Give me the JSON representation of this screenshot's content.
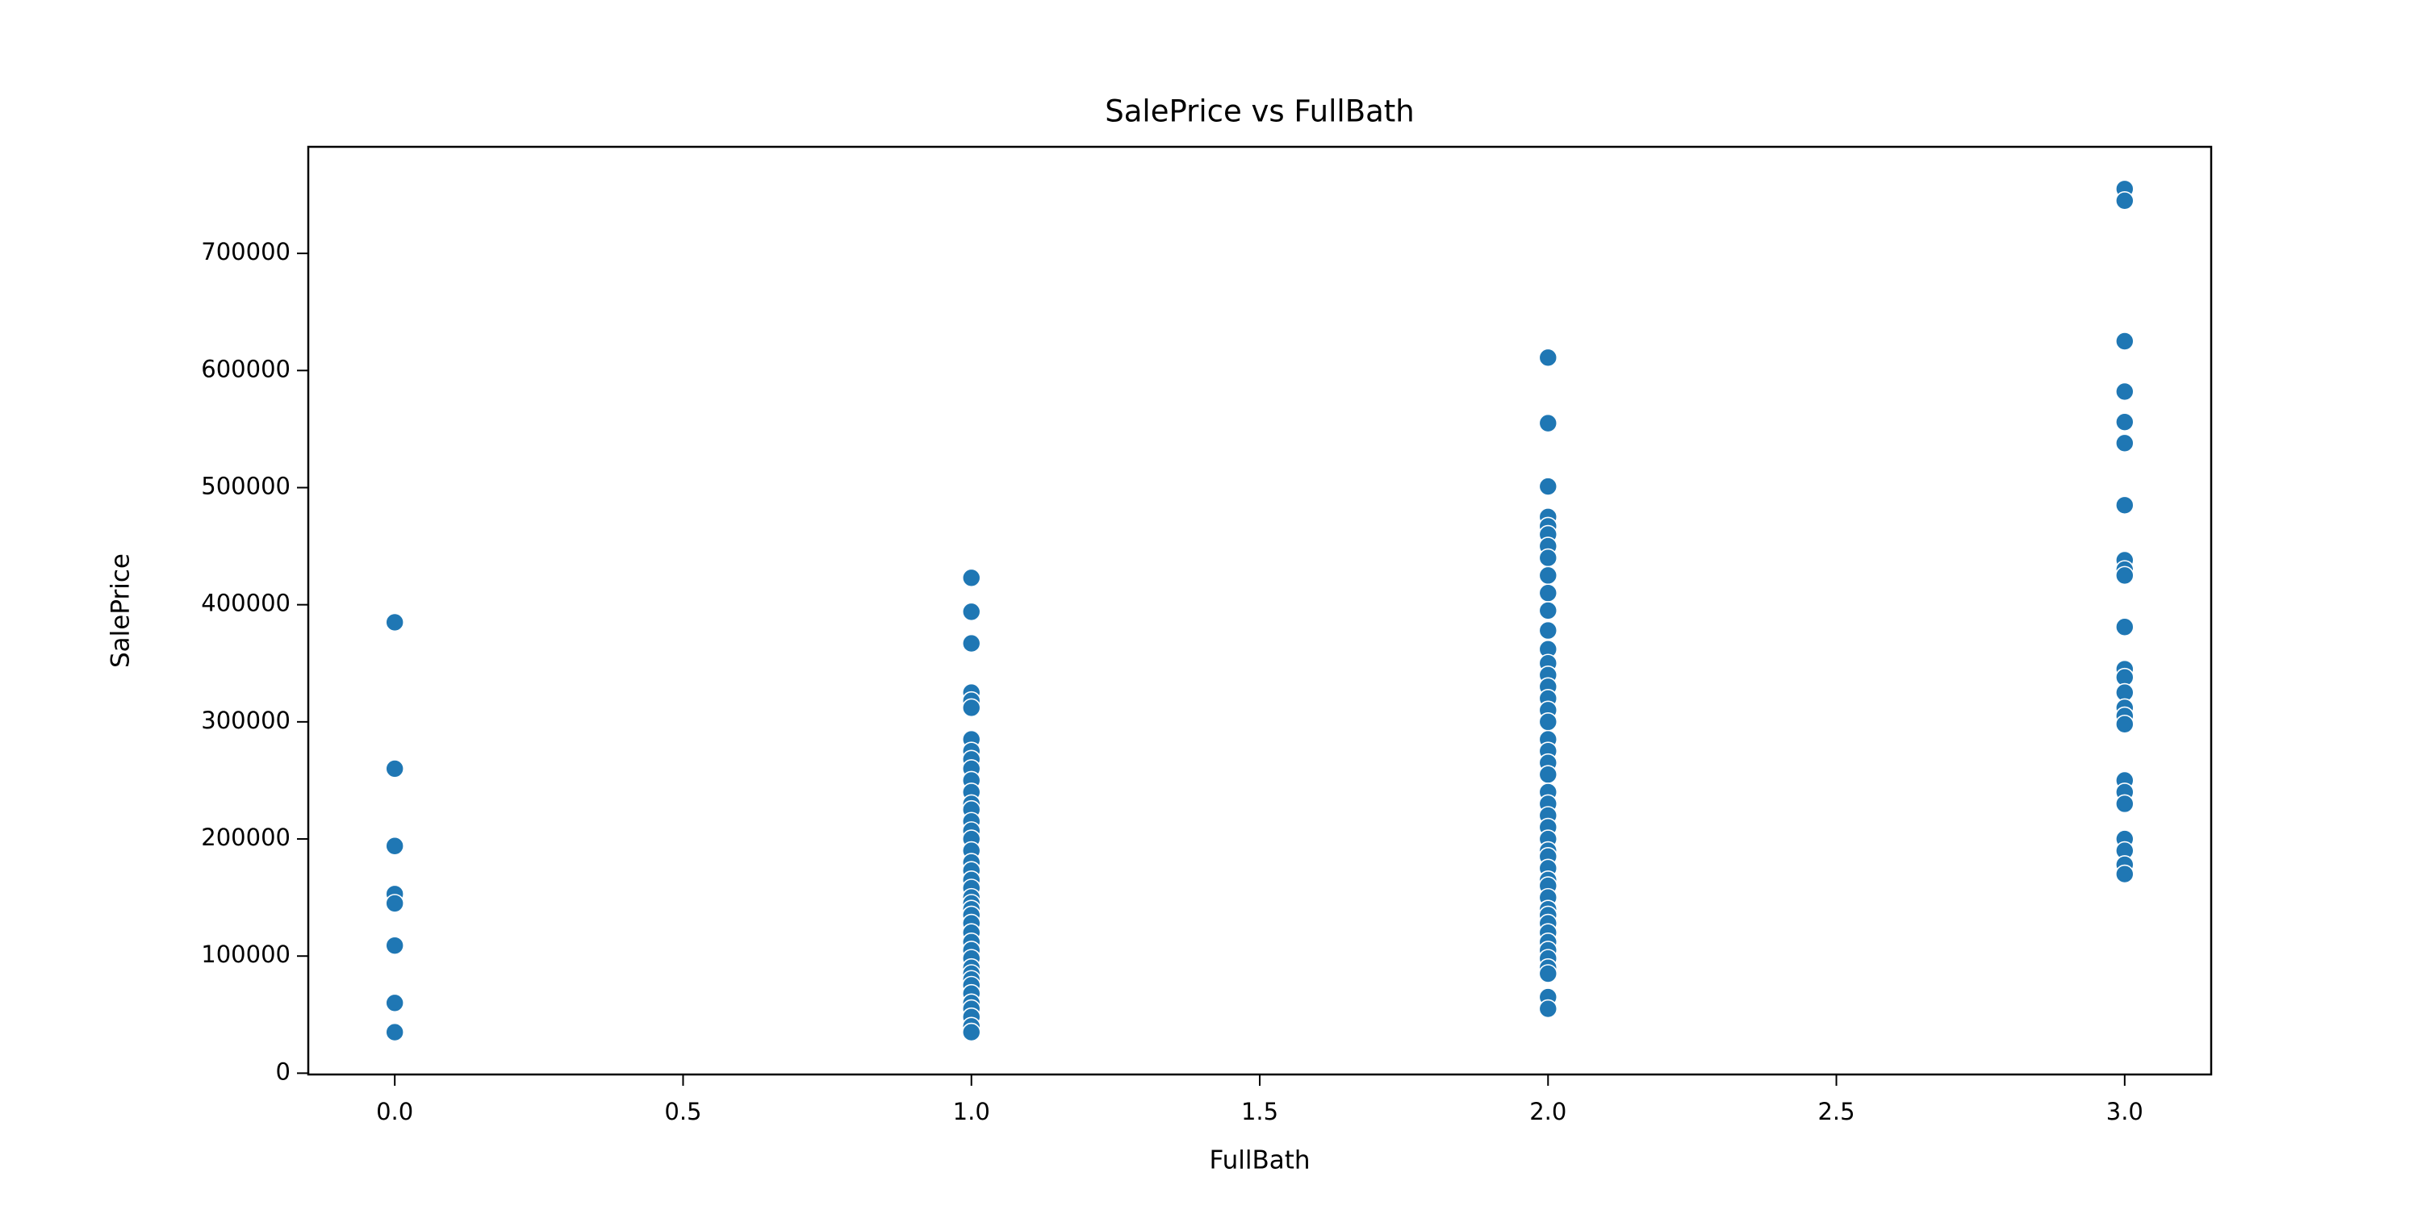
{
  "chart_data": {
    "type": "scatter",
    "title": "SalePrice vs FullBath",
    "x_label": "FullBath",
    "y_label": "SalePrice",
    "color": "#1f77b4",
    "x": [
      0,
      0,
      0,
      0,
      0,
      0,
      0,
      0,
      1,
      1,
      1,
      1,
      1,
      1,
      1,
      1,
      1,
      1,
      1,
      1,
      1,
      1,
      1,
      1,
      1,
      1,
      1,
      1,
      1,
      1,
      1,
      1,
      1,
      1,
      1,
      1,
      1,
      1,
      1,
      1,
      1,
      1,
      1,
      1,
      1,
      1,
      1,
      1,
      1,
      2,
      2,
      2,
      2,
      2,
      2,
      2,
      2,
      2,
      2,
      2,
      2,
      2,
      2,
      2,
      2,
      2,
      2,
      2,
      2,
      2,
      2,
      2,
      2,
      2,
      2,
      2,
      2,
      2,
      2,
      2,
      2,
      2,
      2,
      2,
      2,
      2,
      2,
      2,
      2,
      2,
      2,
      2,
      2,
      2,
      3,
      3,
      3,
      3,
      3,
      3,
      3,
      3,
      3,
      3,
      3,
      3,
      3,
      3,
      3,
      3,
      3,
      3,
      3,
      3,
      3,
      3,
      3,
      3
    ],
    "values": [
      385000,
      260000,
      194000,
      153000,
      145000,
      109000,
      60000,
      35000,
      423000,
      394000,
      367000,
      325000,
      318000,
      312000,
      285000,
      275000,
      268000,
      260000,
      250000,
      240000,
      230000,
      225000,
      215000,
      207000,
      200000,
      190000,
      180000,
      173000,
      165000,
      158000,
      150000,
      145000,
      140000,
      135000,
      128000,
      120000,
      112000,
      105000,
      98000,
      90000,
      85000,
      80000,
      75000,
      68000,
      60000,
      55000,
      48000,
      40000,
      35000,
      611000,
      555000,
      501000,
      475000,
      467000,
      460000,
      450000,
      440000,
      425000,
      410000,
      395000,
      378000,
      362000,
      350000,
      340000,
      330000,
      320000,
      310000,
      300000,
      285000,
      275000,
      265000,
      255000,
      240000,
      230000,
      220000,
      210000,
      200000,
      190000,
      185000,
      175000,
      165000,
      160000,
      150000,
      140000,
      135000,
      128000,
      120000,
      112000,
      105000,
      98000,
      90000,
      85000,
      65000,
      55000,
      755000,
      745000,
      625000,
      582000,
      556000,
      538000,
      485000,
      438000,
      430000,
      425000,
      381000,
      345000,
      338000,
      325000,
      312000,
      305000,
      298000,
      250000,
      240000,
      230000,
      200000,
      190000,
      178000,
      170000
    ],
    "xlim": [
      -0.15,
      3.15
    ],
    "ylim": [
      -1105,
      791005
    ],
    "xticks": [
      {
        "value": 0,
        "label": "0.0"
      },
      {
        "value": 0.5,
        "label": "0.5"
      },
      {
        "value": 1,
        "label": "1.0"
      },
      {
        "value": 1.5,
        "label": "1.5"
      },
      {
        "value": 2,
        "label": "2.0"
      },
      {
        "value": 2.5,
        "label": "2.5"
      },
      {
        "value": 3,
        "label": "3.0"
      }
    ],
    "yticks": [
      0,
      100000,
      200000,
      300000,
      400000,
      500000,
      600000,
      700000
    ],
    "grid": false
  }
}
